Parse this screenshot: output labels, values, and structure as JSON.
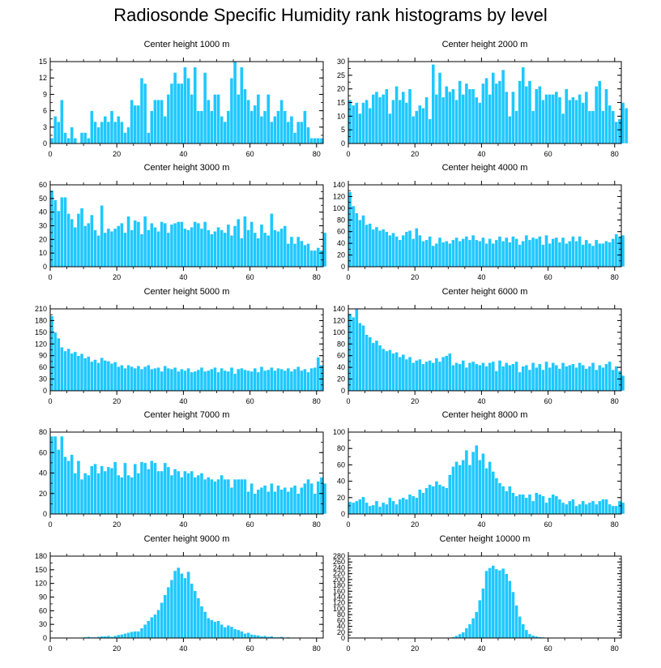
{
  "title": "Radiosonde Specific Humidity rank histograms by level",
  "style": {
    "bar_color": "#1ec8ff",
    "bar_edge": "#ffffff",
    "axis_color": "#000000"
  },
  "chart_data": [
    {
      "type": "bar",
      "title": "Center height 1000 m",
      "x_start": 0,
      "ylim": [
        0,
        15
      ],
      "yticks": [
        0,
        3,
        6,
        9,
        12,
        15
      ],
      "xticks": [
        0,
        20,
        40,
        60,
        80
      ],
      "values": [
        1,
        5,
        4,
        8,
        2,
        1,
        3,
        1,
        0,
        2,
        2,
        1,
        6,
        4,
        3,
        4,
        5,
        4,
        6,
        4,
        5,
        4,
        2,
        3,
        8,
        7,
        7,
        12,
        11,
        2,
        6,
        8,
        8,
        8,
        5,
        9,
        11,
        13,
        11,
        11,
        14,
        12,
        9,
        14,
        6,
        6,
        13,
        8,
        6,
        9,
        9,
        5,
        4,
        6,
        12,
        15,
        9,
        14,
        10,
        8,
        6,
        7,
        9,
        5,
        6,
        9,
        4,
        5,
        6,
        8,
        6,
        4,
        5,
        2,
        4,
        4,
        6,
        3,
        1,
        1,
        1,
        1
      ]
    },
    {
      "type": "bar",
      "title": "Center height 2000 m",
      "x_start": 0,
      "ylim": [
        0,
        30
      ],
      "yticks": [
        0,
        5,
        10,
        15,
        20,
        25,
        30
      ],
      "xticks": [
        0,
        20,
        40,
        60,
        80
      ],
      "values": [
        16,
        14,
        15,
        11,
        15,
        16,
        13,
        18,
        19,
        17,
        18,
        20,
        11,
        16,
        21,
        16,
        19,
        15,
        20,
        10,
        12,
        14,
        13,
        17,
        9,
        29,
        18,
        26,
        17,
        21,
        19,
        20,
        16,
        23,
        18,
        22,
        20,
        20,
        17,
        15,
        22,
        24,
        18,
        26,
        22,
        23,
        27,
        19,
        10,
        19,
        12,
        23,
        28,
        21,
        23,
        12,
        20,
        21,
        16,
        18,
        18,
        18,
        19,
        17,
        11,
        20,
        16,
        17,
        16,
        18,
        15,
        19,
        12,
        12,
        21,
        23,
        12,
        20,
        14,
        12,
        8,
        9,
        15,
        13
      ]
    },
    {
      "type": "bar",
      "title": "Center height 3000 m",
      "x_start": 0,
      "ylim": [
        0,
        60
      ],
      "yticks": [
        0,
        10,
        20,
        30,
        40,
        50,
        60
      ],
      "xticks": [
        0,
        20,
        40,
        60,
        80
      ],
      "values": [
        56,
        49,
        41,
        51,
        51,
        39,
        35,
        29,
        39,
        43,
        30,
        32,
        38,
        27,
        23,
        45,
        25,
        28,
        26,
        28,
        30,
        32,
        25,
        37,
        27,
        34,
        33,
        24,
        37,
        27,
        32,
        29,
        26,
        33,
        32,
        25,
        31,
        32,
        33,
        33,
        28,
        27,
        29,
        33,
        32,
        28,
        33,
        27,
        24,
        26,
        29,
        27,
        25,
        31,
        23,
        30,
        35,
        21,
        37,
        27,
        33,
        25,
        21,
        31,
        25,
        23,
        39,
        27,
        26,
        28,
        30,
        17,
        22,
        17,
        22,
        19,
        16,
        17,
        12,
        12,
        14,
        12,
        25
      ]
    },
    {
      "type": "bar",
      "title": "Center height 4000 m",
      "x_start": 0,
      "ylim": [
        0,
        140
      ],
      "yticks": [
        0,
        20,
        40,
        60,
        80,
        100,
        120,
        140
      ],
      "xticks": [
        0,
        20,
        40,
        60,
        80
      ],
      "values": [
        128,
        104,
        92,
        80,
        88,
        72,
        74,
        64,
        68,
        62,
        64,
        60,
        54,
        58,
        52,
        46,
        54,
        60,
        62,
        48,
        66,
        54,
        44,
        46,
        52,
        36,
        40,
        50,
        42,
        44,
        40,
        46,
        50,
        44,
        48,
        52,
        46,
        54,
        46,
        44,
        50,
        40,
        48,
        40,
        46,
        52,
        44,
        50,
        42,
        52,
        48,
        38,
        44,
        54,
        46,
        50,
        48,
        52,
        38,
        54,
        40,
        48,
        50,
        42,
        50,
        40,
        44,
        52,
        44,
        52,
        38,
        46,
        40,
        36,
        46,
        40,
        40,
        44,
        42,
        48,
        56,
        52,
        54
      ]
    },
    {
      "type": "bar",
      "title": "Center height 5000 m",
      "x_start": 0,
      "ylim": [
        0,
        210
      ],
      "yticks": [
        0,
        30,
        60,
        90,
        120,
        150,
        180,
        210
      ],
      "xticks": [
        0,
        20,
        40,
        60,
        80
      ],
      "values": [
        192,
        150,
        135,
        112,
        102,
        108,
        96,
        100,
        90,
        95,
        84,
        88,
        75,
        80,
        72,
        85,
        78,
        76,
        70,
        74,
        62,
        66,
        58,
        66,
        62,
        58,
        64,
        56,
        62,
        66,
        56,
        58,
        60,
        50,
        64,
        58,
        56,
        60,
        50,
        56,
        52,
        58,
        48,
        50,
        54,
        60,
        50,
        52,
        56,
        60,
        48,
        58,
        52,
        50,
        60,
        44,
        56,
        58,
        54,
        52,
        50,
        58,
        48,
        62,
        52,
        54,
        60,
        52,
        58,
        56,
        52,
        58,
        50,
        56,
        62,
        52,
        56,
        48,
        58,
        60,
        86,
        66
      ]
    },
    {
      "type": "bar",
      "title": "Center height 6000 m",
      "x_start": 0,
      "ylim": [
        0,
        140
      ],
      "yticks": [
        0,
        20,
        40,
        60,
        80,
        100,
        120,
        140
      ],
      "xticks": [
        0,
        20,
        40,
        60,
        80
      ],
      "values": [
        132,
        126,
        140,
        116,
        112,
        96,
        92,
        82,
        86,
        78,
        72,
        68,
        70,
        64,
        66,
        58,
        62,
        54,
        58,
        48,
        52,
        54,
        46,
        50,
        52,
        48,
        56,
        50,
        58,
        60,
        64,
        44,
        48,
        46,
        52,
        40,
        48,
        50,
        46,
        44,
        48,
        42,
        48,
        50,
        34,
        52,
        42,
        48,
        44,
        46,
        50,
        32,
        42,
        44,
        36,
        48,
        40,
        46,
        36,
        50,
        40,
        48,
        44,
        38,
        48,
        42,
        44,
        46,
        40,
        48,
        44,
        38,
        42,
        48,
        36,
        44,
        40,
        46,
        50,
        36,
        42,
        34,
        26
      ]
    },
    {
      "type": "bar",
      "title": "Center height 7000 m",
      "x_start": 0,
      "ylim": [
        0,
        80
      ],
      "yticks": [
        0,
        20,
        40,
        60,
        80
      ],
      "xticks": [
        0,
        20,
        40,
        60,
        80
      ],
      "values": [
        76,
        76,
        63,
        76,
        56,
        52,
        58,
        40,
        52,
        34,
        40,
        38,
        47,
        49,
        40,
        47,
        42,
        46,
        45,
        51,
        38,
        36,
        50,
        38,
        36,
        49,
        40,
        51,
        50,
        44,
        52,
        50,
        42,
        42,
        50,
        46,
        38,
        44,
        42,
        36,
        42,
        40,
        42,
        36,
        38,
        40,
        34,
        36,
        34,
        32,
        34,
        38,
        34,
        34,
        26,
        34,
        34,
        34,
        34,
        22,
        30,
        20,
        24,
        26,
        28,
        22,
        30,
        22,
        28,
        24,
        26,
        22,
        26,
        28,
        20,
        26,
        30,
        34,
        30,
        20,
        32,
        36,
        30
      ]
    },
    {
      "type": "bar",
      "title": "Center height 8000 m",
      "x_start": 0,
      "ylim": [
        0,
        100
      ],
      "yticks": [
        0,
        20,
        40,
        60,
        80,
        100
      ],
      "xticks": [
        0,
        20,
        40,
        60,
        80
      ],
      "values": [
        15,
        14,
        16,
        18,
        21,
        14,
        10,
        11,
        16,
        9,
        14,
        12,
        20,
        16,
        12,
        18,
        20,
        18,
        24,
        22,
        20,
        30,
        26,
        32,
        36,
        34,
        40,
        36,
        34,
        32,
        48,
        58,
        64,
        60,
        66,
        78,
        60,
        76,
        84,
        66,
        74,
        56,
        64,
        52,
        44,
        38,
        34,
        28,
        34,
        26,
        22,
        24,
        24,
        20,
        24,
        16,
        26,
        24,
        22,
        14,
        20,
        24,
        22,
        18,
        14,
        12,
        16,
        18,
        10,
        12,
        16,
        12,
        14,
        16,
        12,
        16,
        18,
        18,
        12,
        10,
        10,
        16,
        14
      ]
    },
    {
      "type": "bar",
      "title": "Center height 9000 m",
      "x_start": 0,
      "ylim": [
        0,
        180
      ],
      "yticks": [
        0,
        30,
        60,
        90,
        120,
        150,
        180
      ],
      "xticks": [
        0,
        20,
        40,
        60,
        80
      ],
      "values": [
        0,
        0,
        0,
        0,
        0,
        0,
        1,
        1,
        0,
        1,
        2,
        3,
        2,
        2,
        3,
        4,
        4,
        5,
        3,
        5,
        7,
        8,
        10,
        12,
        14,
        15,
        15,
        22,
        30,
        38,
        46,
        52,
        62,
        78,
        95,
        112,
        128,
        148,
        155,
        142,
        132,
        146,
        120,
        104,
        88,
        70,
        58,
        44,
        40,
        36,
        38,
        30,
        24,
        28,
        25,
        20,
        18,
        15,
        10,
        12,
        8,
        7,
        6,
        4,
        5,
        3,
        4,
        2,
        2,
        3,
        1,
        2,
        0,
        1,
        1,
        0,
        0,
        1,
        0,
        0,
        0,
        0
      ]
    },
    {
      "type": "bar",
      "title": "Center height 10000 m",
      "x_start": 0,
      "ylim": [
        0,
        280
      ],
      "yticks": [
        0,
        20,
        40,
        60,
        80,
        100,
        120,
        140,
        160,
        180,
        200,
        220,
        240,
        260,
        280
      ],
      "xticks": [
        0,
        20,
        40,
        60,
        80
      ],
      "values": [
        0,
        0,
        0,
        0,
        0,
        0,
        0,
        0,
        0,
        0,
        0,
        0,
        0,
        0,
        0,
        0,
        0,
        0,
        0,
        0,
        0,
        0,
        0,
        0,
        0,
        0,
        0,
        0,
        0,
        1,
        2,
        4,
        8,
        14,
        20,
        34,
        48,
        68,
        90,
        130,
        170,
        230,
        240,
        248,
        236,
        232,
        238,
        220,
        196,
        158,
        112,
        74,
        48,
        28,
        14,
        9,
        6,
        4,
        3,
        2,
        1,
        1,
        0,
        0,
        0,
        0,
        0,
        0,
        0,
        0,
        0,
        0,
        0,
        0,
        0,
        0,
        0,
        0,
        0,
        0,
        0,
        0
      ]
    }
  ]
}
